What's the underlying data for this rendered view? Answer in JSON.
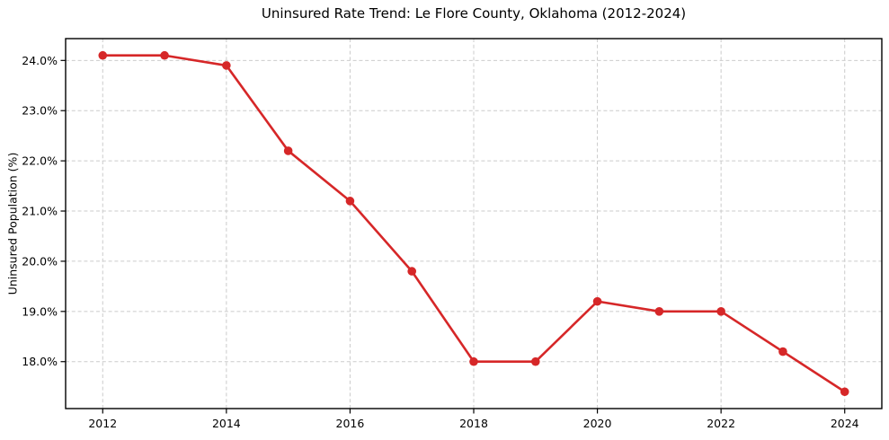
{
  "chart_data": {
    "type": "line",
    "title": "Uninsured Rate Trend: Le Flore County, Oklahoma (2012-2024)",
    "xlabel": "",
    "ylabel": "Uninsured Population (%)",
    "x": [
      2012,
      2013,
      2014,
      2015,
      2016,
      2017,
      2018,
      2019,
      2020,
      2021,
      2022,
      2023,
      2024
    ],
    "series": [
      {
        "name": "Uninsured rate",
        "values": [
          24.1,
          24.1,
          23.9,
          22.2,
          21.2,
          19.8,
          18.0,
          18.0,
          19.2,
          19.0,
          19.0,
          18.2,
          17.4
        ]
      }
    ],
    "xlim": [
      2011.4,
      2024.6
    ],
    "ylim": [
      17.065,
      24.435
    ],
    "x_ticks": [
      2012,
      2014,
      2016,
      2018,
      2020,
      2022,
      2024
    ],
    "x_tick_labels": [
      "2012",
      "2014",
      "2016",
      "2018",
      "2020",
      "2022",
      "2024"
    ],
    "y_ticks": [
      18,
      19,
      20,
      21,
      22,
      23,
      24
    ],
    "y_tick_labels": [
      "18.0%",
      "19.0%",
      "20.0%",
      "21.0%",
      "22.0%",
      "23.0%",
      "24.0%"
    ],
    "grid": true,
    "grid_style": "dashed",
    "legend": "none",
    "marker": "circle",
    "colors": {
      "line": "#d62728",
      "marker": "#d62728",
      "grid": "#cbcbcb",
      "spine": "#000000",
      "text": "#000000",
      "background": "#ffffff"
    }
  }
}
